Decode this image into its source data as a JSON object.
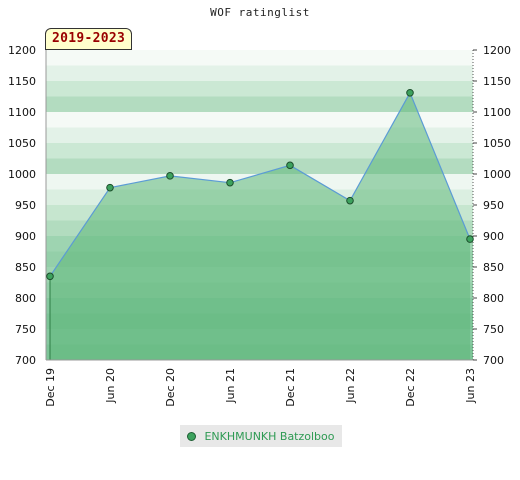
{
  "chart_data": {
    "type": "area",
    "title": "WOF ratinglist",
    "period_label": "2019-2023",
    "categories": [
      "Dec 19",
      "Jun 20",
      "Dec 20",
      "Jun 21",
      "Dec 21",
      "Jun 22",
      "Dec 22",
      "Jun 23"
    ],
    "series": [
      {
        "name": "ENKHMUNKH Batzolboo",
        "values": [
          835,
          978,
          997,
          986,
          1014,
          957,
          1131,
          895
        ]
      }
    ],
    "ylim": [
      700,
      1200
    ],
    "yticks": [
      700,
      750,
      800,
      850,
      900,
      950,
      1000,
      1050,
      1100,
      1150,
      1200
    ],
    "legend_position": "bottom",
    "colors": {
      "fill": "#5fb87a",
      "line": "#5b9bd5",
      "marker": "#3da25e"
    }
  }
}
